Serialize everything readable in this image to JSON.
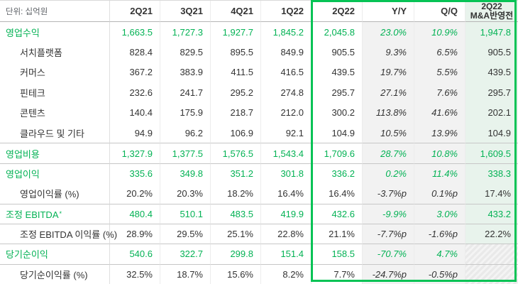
{
  "unit_label": "단위: 십억원",
  "columns": [
    "2Q21",
    "3Q21",
    "4Q21",
    "1Q22",
    "2Q22",
    "Y/Y",
    "Q/Q"
  ],
  "mna_column": {
    "line1": "2Q22",
    "line2": "M&A반영전"
  },
  "colors": {
    "accent_green_border": "#06c355",
    "accent_green_text": "#03b254",
    "mna_column_bg": "#e8f3ec",
    "yoy_qoq_bg": "#f2f2f2"
  },
  "rows": [
    {
      "label": "영업수익",
      "type": "section",
      "sep": false,
      "hatch_last": false,
      "sup": "",
      "values": [
        "1,663.5",
        "1,727.3",
        "1,927.7",
        "1,845.2",
        "2,045.8",
        "23.0%",
        "10.9%",
        "1,947.8"
      ]
    },
    {
      "label": "서치플랫폼",
      "type": "sub",
      "sep": false,
      "hatch_last": false,
      "sup": "",
      "values": [
        "828.4",
        "829.5",
        "895.5",
        "849.9",
        "905.5",
        "9.3%",
        "6.5%",
        "905.5"
      ]
    },
    {
      "label": "커머스",
      "type": "sub",
      "sep": false,
      "hatch_last": false,
      "sup": "",
      "values": [
        "367.2",
        "383.9",
        "411.5",
        "416.5",
        "439.5",
        "19.7%",
        "5.5%",
        "439.5"
      ]
    },
    {
      "label": "핀테크",
      "type": "sub",
      "sep": false,
      "hatch_last": false,
      "sup": "",
      "values": [
        "232.6",
        "241.7",
        "295.2",
        "274.8",
        "295.7",
        "27.1%",
        "7.6%",
        "295.7"
      ]
    },
    {
      "label": "콘텐츠",
      "type": "sub",
      "sep": false,
      "hatch_last": false,
      "sup": "",
      "values": [
        "140.4",
        "175.9",
        "218.7",
        "212.0",
        "300.2",
        "113.8%",
        "41.6%",
        "202.1"
      ]
    },
    {
      "label": "클라우드 및 기타",
      "type": "sub",
      "sep": false,
      "hatch_last": false,
      "sup": "",
      "values": [
        "94.9",
        "96.2",
        "106.9",
        "92.1",
        "104.9",
        "10.5%",
        "13.9%",
        "104.9"
      ]
    },
    {
      "label": "영업비용",
      "type": "section",
      "sep": true,
      "hatch_last": false,
      "sup": "",
      "values": [
        "1,327.9",
        "1,377.5",
        "1,576.5",
        "1,543.4",
        "1,709.6",
        "28.7%",
        "10.8%",
        "1,609.5"
      ]
    },
    {
      "label": "영업이익",
      "type": "section",
      "sep": true,
      "hatch_last": false,
      "sup": "",
      "values": [
        "335.6",
        "349.8",
        "351.2",
        "301.8",
        "336.2",
        "0.2%",
        "11.4%",
        "338.3"
      ]
    },
    {
      "label": "영업이익률 (%)",
      "type": "sub",
      "sep": false,
      "hatch_last": false,
      "sup": "",
      "values": [
        "20.2%",
        "20.3%",
        "18.2%",
        "16.4%",
        "16.4%",
        "-3.7%p",
        "0.1%p",
        "17.4%"
      ]
    },
    {
      "label": "조정 EBITDA",
      "type": "section",
      "sep": true,
      "hatch_last": false,
      "sup": "*",
      "values": [
        "480.4",
        "510.1",
        "483.5",
        "419.9",
        "432.6",
        "-9.9%",
        "3.0%",
        "433.2"
      ]
    },
    {
      "label": "조정 EBITDA 이익률 (%)",
      "type": "sub",
      "sep": true,
      "hatch_last": false,
      "sup": "",
      "values": [
        "28.9%",
        "29.5%",
        "25.1%",
        "22.8%",
        "21.1%",
        "-7.7%p",
        "-1.6%p",
        "22.2%"
      ]
    },
    {
      "label": "당기순이익",
      "type": "section",
      "sep": true,
      "hatch_last": true,
      "sup": "",
      "values": [
        "540.6",
        "322.7",
        "299.8",
        "151.4",
        "158.5",
        "-70.7%",
        "4.7%",
        ""
      ]
    },
    {
      "label": "당기순이익률 (%)",
      "type": "sub",
      "sep": true,
      "hatch_last": true,
      "sup": "",
      "values": [
        "32.5%",
        "18.7%",
        "15.6%",
        "8.2%",
        "7.7%",
        "-24.7%p",
        "-0.5%p",
        ""
      ]
    }
  ]
}
